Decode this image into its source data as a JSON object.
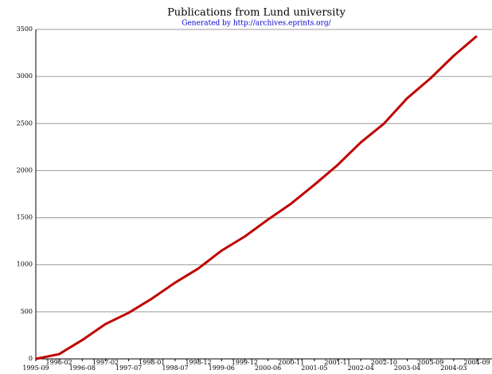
{
  "chart_data": {
    "type": "line",
    "title": "Publications from Lund university",
    "subtitle": "Generated by http://archives.eprints.org/",
    "categories": [
      "1995-09",
      "1996-02",
      "1996-08",
      "1997-02",
      "1997-07",
      "1998-01",
      "1998-07",
      "1998-12",
      "1999-06",
      "1999-12",
      "2000-06",
      "2000-11",
      "2001-05",
      "2001-11",
      "2002-04",
      "2002-10",
      "2003-04",
      "2003-09",
      "2004-03",
      "2004-09"
    ],
    "series": [
      {
        "name": "Publications",
        "color": "#c00000",
        "values": [
          0,
          50,
          200,
          370,
          490,
          640,
          810,
          960,
          1150,
          1300,
          1480,
          1650,
          1850,
          2060,
          2300,
          2500,
          2770,
          2980,
          3220,
          3430
        ]
      }
    ],
    "ylim": [
      0,
      3500
    ],
    "yticks": [
      0,
      500,
      1000,
      1500,
      2000,
      2500,
      3000,
      3500
    ],
    "grid": true
  }
}
